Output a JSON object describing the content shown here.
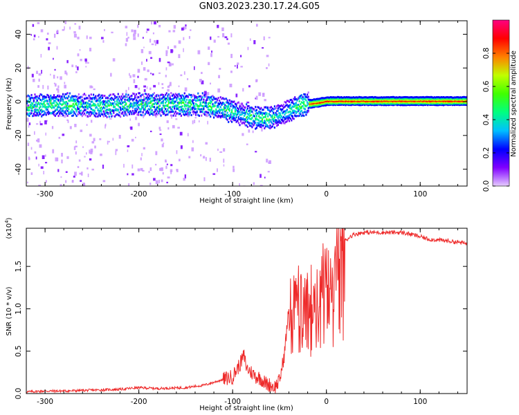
{
  "title": "GN03.2023.230.17.24.G05",
  "chart_data": [
    {
      "type": "heatmap",
      "xlabel": "Height of straight line (km)",
      "ylabel": "Frequency (Hz)",
      "xlim": [
        -320,
        150
      ],
      "ylim": [
        -50,
        48
      ],
      "x_ticks": [
        -300,
        -200,
        -100,
        0,
        100
      ],
      "x_tick_labels": [
        "-300",
        "-200",
        "-100",
        "0",
        "100"
      ],
      "y_ticks": [
        -40,
        -20,
        0,
        20,
        40
      ],
      "y_tick_labels": [
        "-40",
        "-20",
        "0",
        "20",
        "40"
      ],
      "colorbar": {
        "label": "Normalized spectral amplitude",
        "range": [
          0,
          1
        ],
        "ticks": [
          0.0,
          0.2,
          0.4,
          0.6,
          0.8
        ],
        "tick_labels": [
          "0.0",
          "0.2",
          "0.4",
          "0.6",
          "0.8"
        ],
        "colors": [
          "#e6ccff",
          "#8000ff",
          "#0000ff",
          "#00c0ff",
          "#00ff80",
          "#40ff00",
          "#c0ff00",
          "#ff8000",
          "#ff0000",
          "#ff0080"
        ]
      },
      "ridge": {
        "x": [
          -320,
          -280,
          -240,
          -200,
          -160,
          -130,
          -110,
          -90,
          -75,
          -60,
          -45,
          -35,
          -25,
          -10,
          0,
          100,
          150
        ],
        "y": [
          -2,
          -1,
          -2,
          -1,
          -1,
          -1,
          -4,
          -7,
          -9,
          -9,
          -6,
          -3,
          -1,
          0,
          1,
          1,
          1
        ]
      }
    },
    {
      "type": "line",
      "xlabel": "Height of straight line (km)",
      "ylabel": "SNR (10 * v/v)",
      "multiplier": "(x10",
      "multiplier_exp": "4",
      "multiplier_close": ")",
      "xlim": [
        -320,
        150
      ],
      "ylim": [
        0,
        1.95
      ],
      "x_ticks": [
        -300,
        -200,
        -100,
        0,
        100
      ],
      "x_tick_labels": [
        "-300",
        "-200",
        "-100",
        "0",
        "100"
      ],
      "y_ticks": [
        0,
        0.5,
        1.0,
        1.5
      ],
      "y_tick_labels": [
        "0.0",
        "0.5",
        "1.0",
        "1.5"
      ],
      "color": "#ee2a2a",
      "series": [
        {
          "x": [
            -320,
            -300,
            -280,
            -250,
            -220,
            -200,
            -180,
            -150,
            -130,
            -115,
            -100,
            -92,
            -88,
            -85,
            -80,
            -75,
            -70,
            -65,
            -60,
            -55,
            -50,
            -45,
            -40,
            -35,
            -30,
            -25,
            -20,
            -15,
            -10,
            -5,
            0,
            5,
            10,
            15,
            20,
            25,
            30,
            40,
            60,
            80,
            90,
            100,
            110,
            130,
            150
          ],
          "y": [
            0.02,
            0.03,
            0.03,
            0.04,
            0.05,
            0.07,
            0.06,
            0.07,
            0.1,
            0.15,
            0.2,
            0.35,
            0.45,
            0.3,
            0.25,
            0.2,
            0.18,
            0.12,
            0.1,
            0.08,
            0.15,
            0.45,
            1.0,
            1.3,
            1.1,
            0.9,
            1.0,
            1.2,
            1.3,
            1.4,
            1.3,
            1.5,
            1.6,
            1.75,
            1.8,
            1.85,
            1.88,
            1.9,
            1.9,
            1.9,
            1.88,
            1.85,
            1.82,
            1.8,
            1.77
          ]
        }
      ]
    }
  ]
}
